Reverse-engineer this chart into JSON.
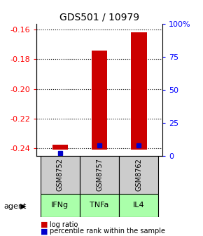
{
  "title": "GDS501 / 10979",
  "samples": [
    "GSM8752",
    "GSM8757",
    "GSM8762"
  ],
  "agents": [
    "IFNg",
    "TNFa",
    "IL4"
  ],
  "log_ratios": [
    -0.2375,
    -0.174,
    -0.162
  ],
  "log_ratio_baseline": -0.241,
  "percentile_ranks": [
    2,
    8,
    8
  ],
  "ylim_left": [
    -0.245,
    -0.156
  ],
  "yticks_left": [
    -0.24,
    -0.22,
    -0.2,
    -0.18,
    -0.16
  ],
  "yticks_right": [
    0,
    25,
    50,
    75,
    100
  ],
  "bar_color": "#cc0000",
  "percentile_color": "#0000cc",
  "agent_bg_color": "#aaffaa",
  "sample_bg_color": "#cccccc",
  "legend_log_label": "log ratio",
  "legend_pct_label": "percentile rank within the sample",
  "background_color": "#ffffff",
  "title_fontsize": 10,
  "tick_fontsize": 8,
  "label_fontsize": 8,
  "sample_fontsize": 7,
  "legend_fontsize": 7
}
